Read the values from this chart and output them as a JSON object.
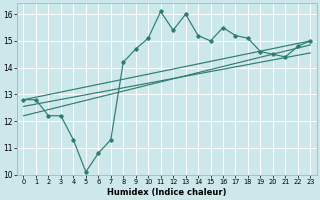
{
  "title": "",
  "xlabel": "Humidex (Indice chaleur)",
  "bg_color": "#cce8ea",
  "grid_color": "#ffffff",
  "line_color": "#2e7d6e",
  "xlim": [
    -0.5,
    23.5
  ],
  "ylim": [
    10,
    16.4
  ],
  "xticks": [
    0,
    1,
    2,
    3,
    4,
    5,
    6,
    7,
    8,
    9,
    10,
    11,
    12,
    13,
    14,
    15,
    16,
    17,
    18,
    19,
    20,
    21,
    22,
    23
  ],
  "yticks": [
    10,
    11,
    12,
    13,
    14,
    15,
    16
  ],
  "line1_x": [
    0,
    1,
    2,
    3,
    4,
    5,
    6,
    7,
    8,
    9,
    10,
    11,
    12,
    13,
    14,
    15,
    16,
    17,
    18,
    19,
    20,
    21,
    22,
    23
  ],
  "line1_y": [
    12.8,
    12.8,
    12.2,
    12.2,
    11.3,
    10.1,
    10.8,
    11.3,
    14.2,
    14.7,
    15.1,
    16.1,
    15.4,
    16.0,
    15.2,
    15.0,
    15.5,
    15.2,
    15.1,
    14.6,
    14.5,
    14.4,
    14.8,
    15.0
  ],
  "line2_x": [
    0,
    23
  ],
  "line2_y": [
    12.8,
    15.0
  ],
  "line3_x": [
    0,
    23
  ],
  "line3_y": [
    12.2,
    14.85
  ],
  "line4_x": [
    0,
    23
  ],
  "line4_y": [
    12.55,
    14.55
  ]
}
